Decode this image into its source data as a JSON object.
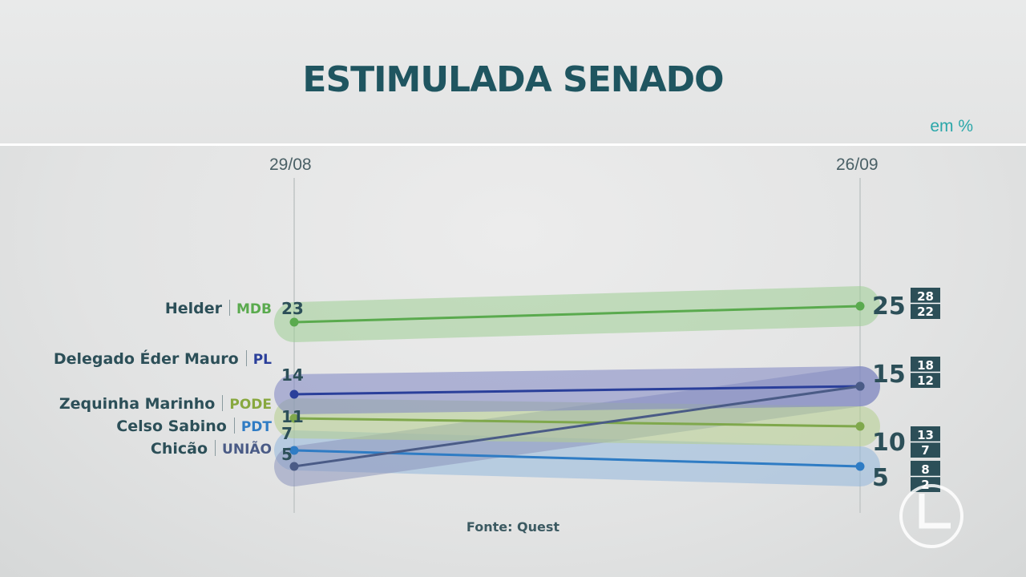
{
  "chart_data": {
    "type": "line",
    "title": "ESTIMULADA SENADO",
    "unit_label": "em %",
    "x": [
      "29/08",
      "26/09"
    ],
    "series": [
      {
        "name": "Helder",
        "party": "MDB",
        "values": [
          23,
          25
        ],
        "ci_high": 28,
        "ci_low": 22,
        "color": "#5aaa4e",
        "band_color": "#9fcf95",
        "party_color": "#5aaa4e"
      },
      {
        "name": "Delegado Éder Mauro",
        "party": "PL",
        "values": [
          14,
          15
        ],
        "ci_high": 18,
        "ci_low": 12,
        "color": "#2a3f9a",
        "band_color": "#7f86c4",
        "party_color": "#2a3f9a"
      },
      {
        "name": "Zequinha Marinho",
        "party": "PODE",
        "values": [
          11,
          10
        ],
        "ci_high": 13,
        "ci_low": 7,
        "color": "#7fa84c",
        "band_color": "#b5cf8e",
        "party_color": "#88a83f"
      },
      {
        "name": "Celso Sabino",
        "party": "PDT",
        "values": [
          7,
          5
        ],
        "ci_high": 8,
        "ci_low": 2,
        "color": "#2f7cc4",
        "band_color": "#94b8dd",
        "party_color": "#2f7cc4"
      },
      {
        "name": "Chicão",
        "party": "UNIÃO",
        "values": [
          5,
          15
        ],
        "color": "#4a5b86",
        "band_color": "#8d96bd",
        "party_color": "#4a5b86"
      }
    ],
    "start_labels": [
      "23",
      "14",
      "11",
      "7",
      "5"
    ],
    "end_labels": [
      "25",
      "15",
      "10",
      "5"
    ],
    "ci_labels": [
      [
        "28",
        "22"
      ],
      [
        "18",
        "12"
      ],
      [
        "13",
        "7"
      ],
      [
        "8",
        "2"
      ]
    ],
    "grid": false,
    "legend": "left-labels"
  },
  "footer": {
    "source": "Fonte: Quest"
  }
}
